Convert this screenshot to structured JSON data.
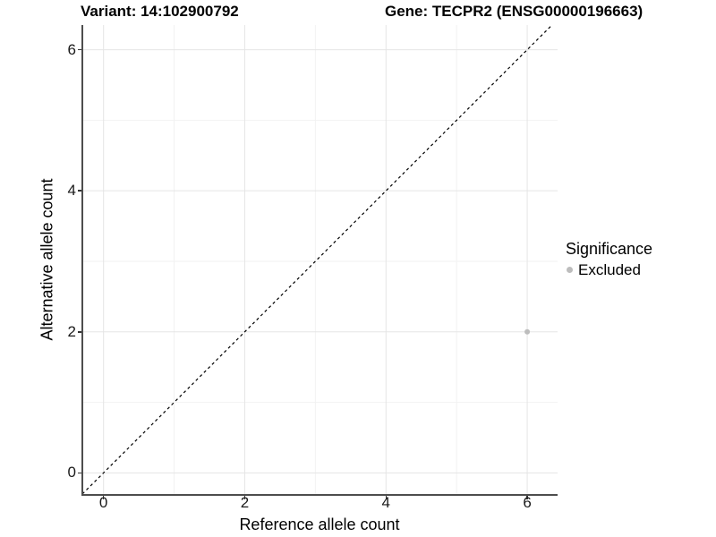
{
  "header": {
    "variant_title": "Variant: 14:102900792",
    "gene_title": "Gene: TECPR2 (ENSG00000196663)"
  },
  "chart_data": {
    "type": "scatter",
    "title": "",
    "xlabel": "Reference allele count",
    "ylabel": "Alternative allele count",
    "xlim": [
      -0.3,
      6.43
    ],
    "ylim": [
      -0.3,
      6.35
    ],
    "x_ticks": [
      0,
      2,
      4,
      6
    ],
    "y_ticks": [
      0,
      2,
      4,
      6
    ],
    "x_minor_ticks": [
      1,
      3,
      5
    ],
    "y_minor_ticks": [
      1,
      3,
      5
    ],
    "grid": "major+minor",
    "legend_position": "right",
    "series": [
      {
        "name": "Excluded",
        "color": "#bdbdbd",
        "points": [
          {
            "x": 6,
            "y": 2
          }
        ]
      }
    ],
    "identity_line": {
      "slope": 1,
      "intercept": 0,
      "style": "dashed",
      "color": "#000000"
    }
  },
  "legend": {
    "title": "Significance",
    "items": [
      {
        "label": "Excluded",
        "color": "#bdbdbd",
        "marker": "circle"
      }
    ]
  },
  "colors": {
    "background": "#ffffff",
    "major_gridline": "#e5e5e5",
    "minor_gridline": "#f2f2f2",
    "axis_line": "#4d4d4d",
    "tick_mark": "#333333",
    "tick_label": "#1a1a1a",
    "title_text": "#000000"
  }
}
